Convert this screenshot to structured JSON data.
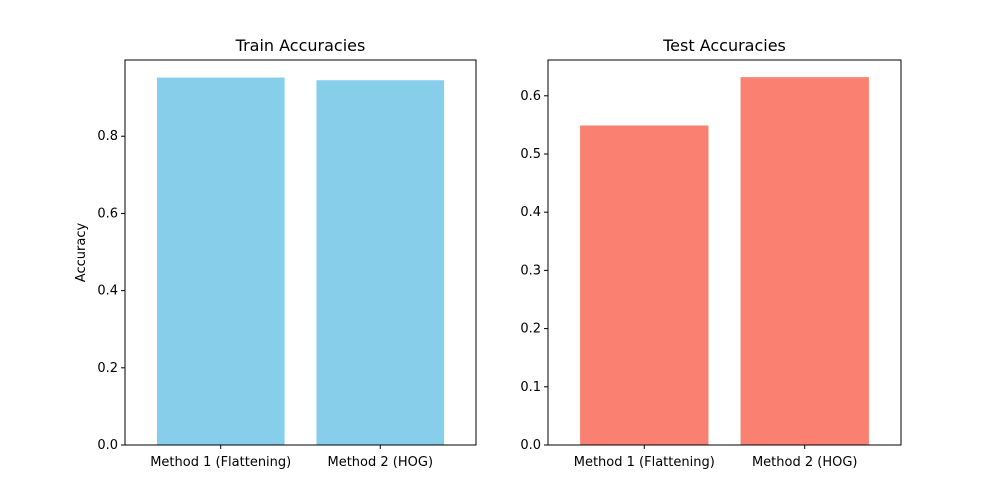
{
  "chart_data": [
    {
      "type": "bar",
      "title": "Train Accuracies",
      "xlabel": "",
      "ylabel": "Accuracy",
      "categories": [
        "Method 1 (Flattening)",
        "Method 2 (HOG)"
      ],
      "values": [
        0.952,
        0.945
      ],
      "ylim": [
        0,
        0.9975
      ],
      "yticks": [
        0.0,
        0.2,
        0.4,
        0.6,
        0.8
      ],
      "ytick_labels": [
        "0.0",
        "0.2",
        "0.4",
        "0.6",
        "0.8"
      ],
      "color": "#87CEEB",
      "grid": false
    },
    {
      "type": "bar",
      "title": "Test Accuracies",
      "xlabel": "",
      "ylabel": "",
      "categories": [
        "Method 1 (Flattening)",
        "Method 2 (HOG)"
      ],
      "values": [
        0.549,
        0.632
      ],
      "ylim": [
        0,
        0.6615
      ],
      "yticks": [
        0.0,
        0.1,
        0.2,
        0.3,
        0.4,
        0.5,
        0.6
      ],
      "ytick_labels": [
        "0.0",
        "0.1",
        "0.2",
        "0.3",
        "0.4",
        "0.5",
        "0.6"
      ],
      "color": "#FA8072",
      "grid": false
    }
  ]
}
